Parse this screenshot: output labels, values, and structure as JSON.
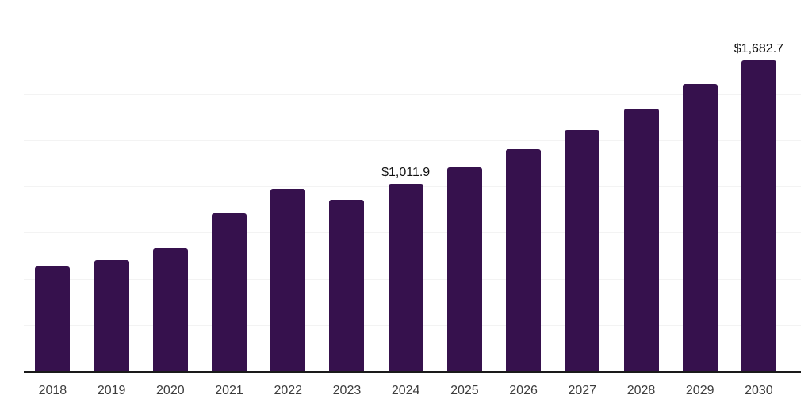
{
  "chart_data": {
    "type": "bar",
    "title": "",
    "xlabel": "",
    "ylabel": "",
    "categories": [
      "2018",
      "2019",
      "2020",
      "2021",
      "2022",
      "2023",
      "2024",
      "2025",
      "2026",
      "2027",
      "2028",
      "2029",
      "2030"
    ],
    "values": [
      568,
      603,
      667,
      855,
      987,
      928,
      1011.9,
      1103,
      1200,
      1306,
      1419,
      1552,
      1682.7
    ],
    "data_labels": [
      {
        "category": "2024",
        "text": "$1,011.9"
      },
      {
        "category": "2030",
        "text": "$1,682.7"
      }
    ],
    "ylim": [
      0,
      2000
    ],
    "gridline_interval": 250,
    "grid": "horizontal",
    "legend_position": "none",
    "y_axis_tick_labels": "none",
    "colors": {
      "bar": "#36114d",
      "axis": "#1a1a1a",
      "gridline": "#f3f3f3",
      "tick_label": "#3d3d3d",
      "value_label": "#111111",
      "background": "#ffffff"
    }
  }
}
